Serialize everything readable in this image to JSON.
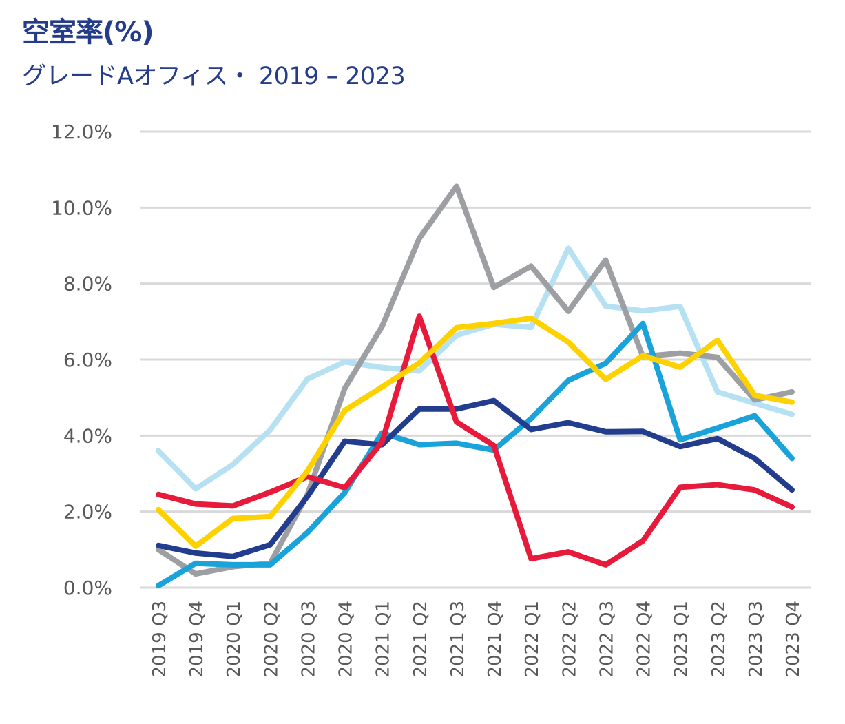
{
  "chart_data": {
    "type": "line",
    "title": "空室率(%)",
    "subtitle": "グレードAオフィス・ 2019 – 2023",
    "xlabel": "",
    "ylabel": "",
    "ylim": [
      0,
      12
    ],
    "y_ticks": [
      "0.0%",
      "2.0%",
      "4.0%",
      "6.0%",
      "8.0%",
      "10.0%",
      "12.0%"
    ],
    "y_tick_values": [
      0,
      2,
      4,
      6,
      8,
      10,
      12
    ],
    "grid": true,
    "legend": "none",
    "categories": [
      "2019 Q3",
      "2019 Q4",
      "2020 Q1",
      "2020 Q2",
      "2020 Q3",
      "2020 Q4",
      "2021 Q1",
      "2021 Q2",
      "2021 Q3",
      "2021 Q4",
      "2022 Q1",
      "2022 Q2",
      "2022 Q3",
      "2022 Q4",
      "2023 Q1",
      "2023 Q2",
      "2023 Q3",
      "2023 Q4"
    ],
    "series": [
      {
        "name": "light-blue",
        "color": "#b5e1f3",
        "values": [
          3.6,
          2.6,
          3.24,
          4.15,
          5.49,
          5.94,
          5.79,
          5.7,
          6.64,
          6.93,
          6.85,
          8.93,
          7.41,
          7.28,
          7.4,
          5.15,
          4.85,
          4.56
        ]
      },
      {
        "name": "gray",
        "color": "#9d9fa2",
        "values": [
          1.0,
          0.36,
          0.55,
          0.64,
          2.45,
          5.24,
          6.87,
          9.19,
          10.56,
          7.9,
          8.46,
          7.27,
          8.62,
          6.08,
          6.17,
          6.06,
          4.94,
          5.15
        ]
      },
      {
        "name": "blue",
        "color": "#1aa3da",
        "values": [
          0.05,
          0.64,
          0.6,
          0.6,
          1.45,
          2.5,
          4.07,
          3.76,
          3.8,
          3.62,
          4.45,
          5.45,
          5.9,
          6.95,
          3.89,
          4.2,
          4.52,
          3.4
        ]
      },
      {
        "name": "navy",
        "color": "#233d8e",
        "values": [
          1.11,
          0.91,
          0.82,
          1.13,
          2.4,
          3.85,
          3.76,
          4.7,
          4.7,
          4.92,
          4.16,
          4.34,
          4.1,
          4.11,
          3.71,
          3.92,
          3.4,
          2.57
        ]
      },
      {
        "name": "red",
        "color": "#e81a3b",
        "values": [
          2.45,
          2.2,
          2.15,
          2.51,
          2.92,
          2.63,
          3.83,
          7.14,
          4.36,
          3.74,
          0.76,
          0.94,
          0.6,
          1.23,
          2.64,
          2.71,
          2.57,
          2.12
        ]
      },
      {
        "name": "yellow",
        "color": "#fed200",
        "values": [
          2.05,
          1.09,
          1.82,
          1.87,
          3.07,
          4.66,
          5.28,
          5.91,
          6.84,
          6.95,
          7.09,
          6.46,
          5.48,
          6.1,
          5.8,
          6.51,
          5.06,
          4.88
        ]
      }
    ]
  }
}
